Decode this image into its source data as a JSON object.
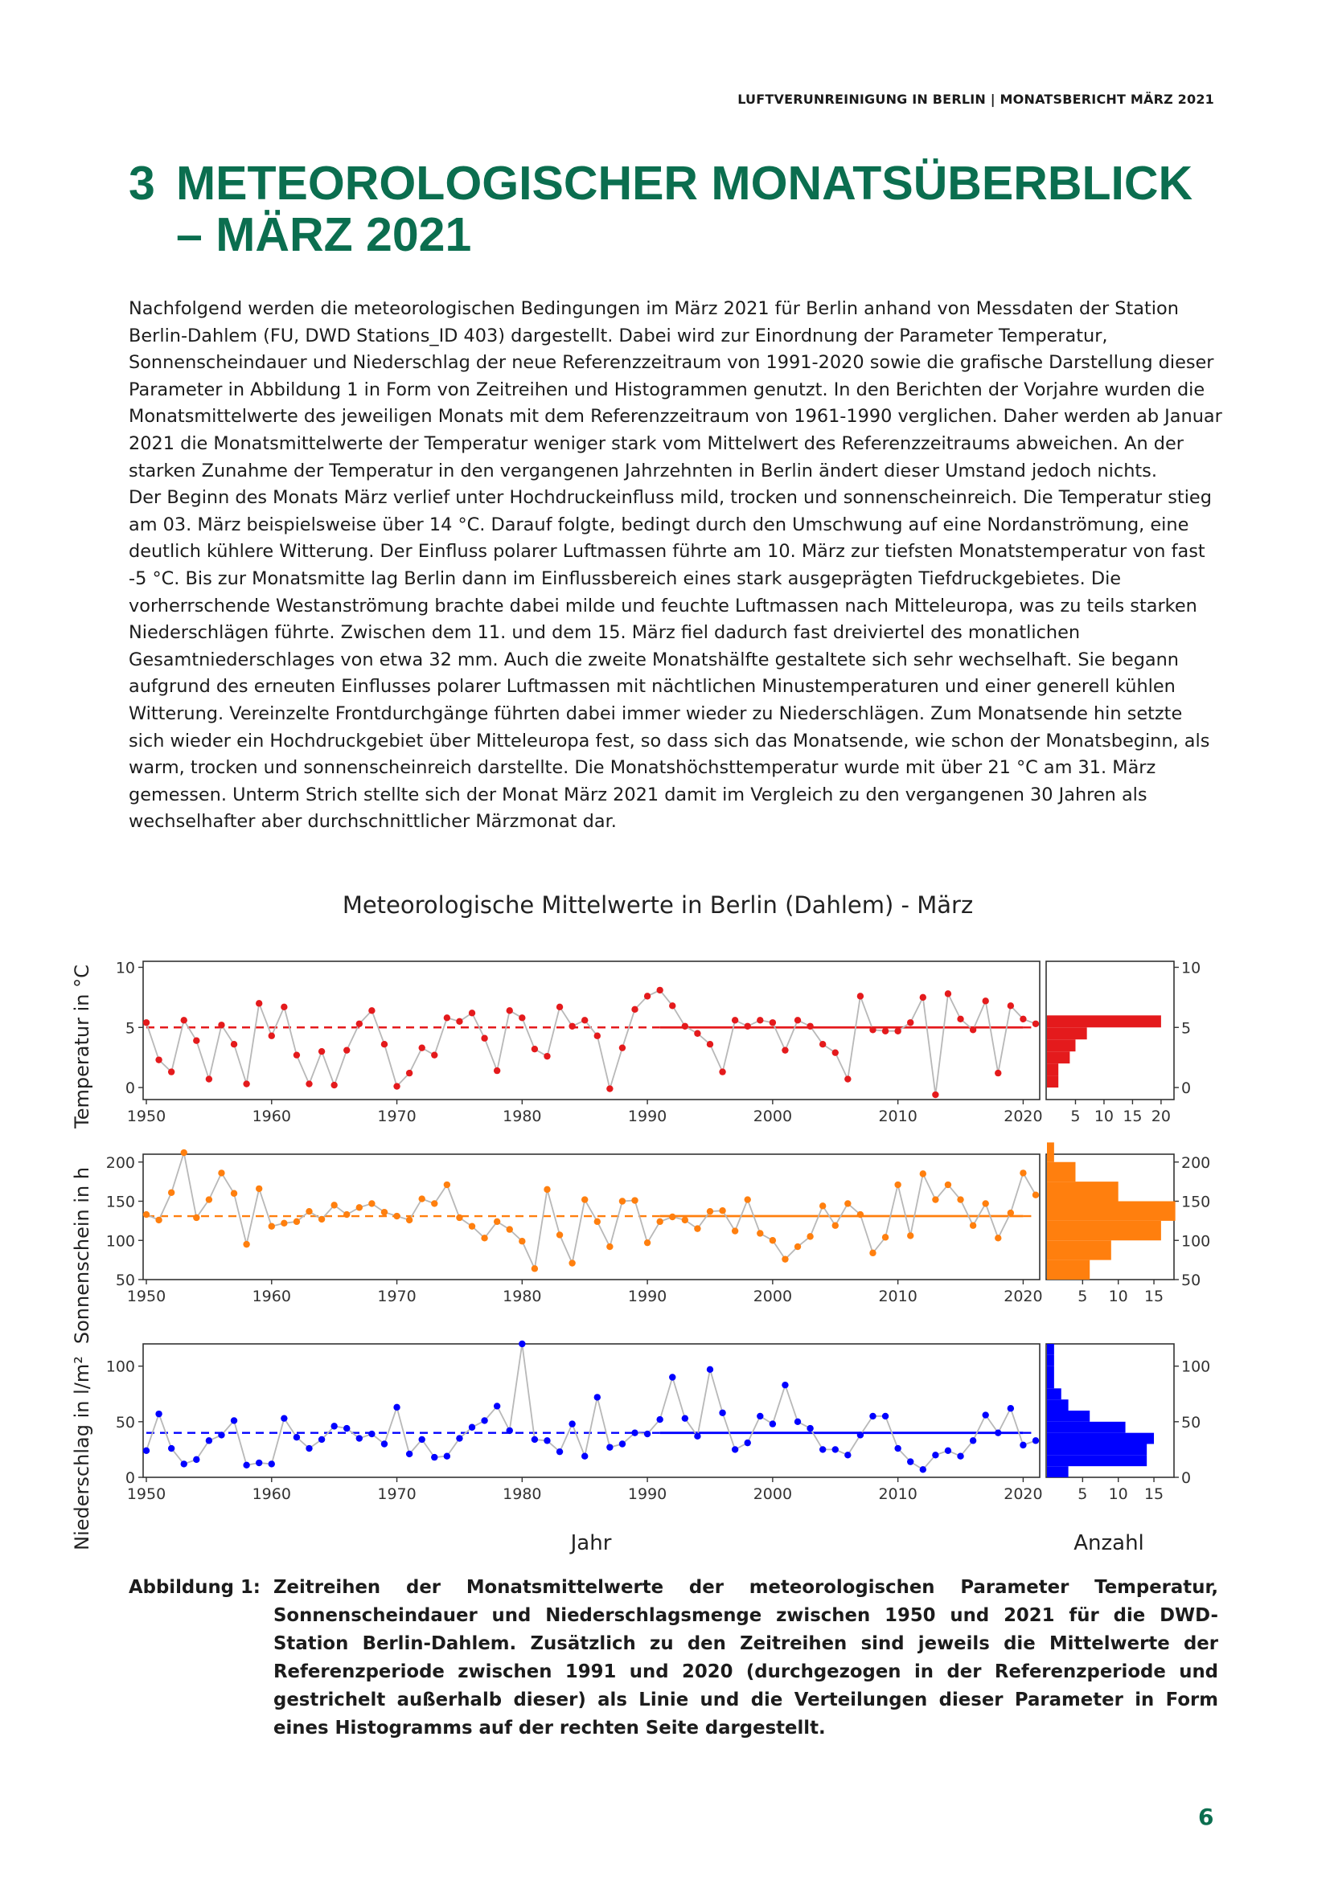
{
  "header": {
    "running_title": "LUFTVERUNREINIGUNG IN BERLIN | MONATSBERICHT MÄRZ 2021"
  },
  "section": {
    "number": "3",
    "title_line1": "METEOROLOGISCHER MONATSÜBERBLICK",
    "title_line2": "– MÄRZ 2021"
  },
  "body": {
    "paragraph1": "Nachfolgend werden die meteorologischen Bedingungen im März 2021 für Berlin anhand von Messdaten der Station Berlin-Dahlem (FU, DWD Stations_ID 403) dargestellt. Dabei wird zur Einordnung der Parameter Temperatur, Sonnenscheindauer und Niederschlag der neue Referenzzeitraum von 1991-2020 sowie die grafische Darstellung dieser Parameter in Abbildung 1 in Form von Zeitreihen und Histogrammen genutzt. In den Berichten der Vorjahre wurden die Monatsmittelwerte des jeweiligen Monats mit dem Referenzzeitraum von 1961-1990 verglichen. Daher werden ab Januar 2021 die Monatsmittelwerte der Temperatur weniger stark vom Mittelwert des Referenzzeitraums abweichen. An der starken Zunahme der Temperatur in den vergangenen Jahrzehnten in Berlin ändert dieser Umstand jedoch nichts.",
    "paragraph2": "Der Beginn des Monats März verlief unter Hochdruckeinfluss mild, trocken und sonnenscheinreich. Die Temperatur stieg am 03. März beispielsweise über 14 °C. Darauf folgte, bedingt durch den Umschwung auf eine Nordanströmung, eine deutlich kühlere Witterung. Der Einfluss polarer Luftmassen führte am 10. März zur tiefsten Monatstemperatur von fast -5 °C. Bis zur Monatsmitte lag Berlin dann im Einflussbereich eines stark ausgeprägten Tiefdruckgebietes. Die vorherrschende Westanströmung brachte dabei milde und feuchte Luftmassen nach Mitteleuropa, was zu teils starken Niederschlägen führte. Zwischen dem 11. und dem 15. März fiel dadurch fast dreiviertel des monatlichen Gesamtniederschlages von etwa 32 mm. Auch die zweite Monatshälfte gestaltete sich sehr wechselhaft. Sie begann aufgrund des erneuten Einflusses polarer Luftmassen mit nächtlichen Minustemperaturen und einer generell kühlen Witterung. Vereinzelte Frontdurchgänge führten dabei immer wieder zu Niederschlägen. Zum Monatsende hin setzte sich wieder ein Hochdruckgebiet über Mitteleuropa fest, so dass sich das Monatsende, wie schon der Monatsbeginn, als warm, trocken und sonnenscheinreich darstellte. Die Monatshöchsttemperatur wurde mit über 21 °C am 31. März gemessen. Unterm Strich stellte sich der Monat März 2021 damit im Vergleich zu den vergangenen 30 Jahren als wechselhafter aber durchschnittlicher Märzmonat dar."
  },
  "figure": {
    "title": "Meteorologische Mittelwerte in Berlin (Dahlem) - März",
    "xlabel_left": "Jahr",
    "xlabel_right": "Anzahl",
    "ylabel_temperature": "Temperatur in °C",
    "ylabel_sunshine": "Sonnenschein in h",
    "ylabel_precip": "Niederschlag in l/m²"
  },
  "chart_data": [
    {
      "type": "line",
      "title": "Temperatur",
      "ylabel": "Temperatur in °C",
      "xlabel": "Jahr",
      "color": "#e41a1c",
      "ylim": [
        -1,
        10.5
      ],
      "yticks": [
        0,
        5,
        10
      ],
      "xlim": [
        1950,
        2021
      ],
      "xticks": [
        1950,
        1960,
        1970,
        1980,
        1990,
        2000,
        2010,
        2020
      ],
      "x": [
        1950,
        1951,
        1952,
        1953,
        1954,
        1955,
        1956,
        1957,
        1958,
        1959,
        1960,
        1961,
        1962,
        1963,
        1964,
        1965,
        1966,
        1967,
        1968,
        1969,
        1970,
        1971,
        1972,
        1973,
        1974,
        1975,
        1976,
        1977,
        1978,
        1979,
        1980,
        1981,
        1982,
        1983,
        1984,
        1985,
        1986,
        1987,
        1988,
        1989,
        1990,
        1991,
        1992,
        1993,
        1994,
        1995,
        1996,
        1997,
        1998,
        1999,
        2000,
        2001,
        2002,
        2003,
        2004,
        2005,
        2006,
        2007,
        2008,
        2009,
        2010,
        2011,
        2012,
        2013,
        2014,
        2015,
        2016,
        2017,
        2018,
        2019,
        2020,
        2021
      ],
      "values": [
        5.4,
        2.3,
        1.3,
        5.6,
        3.9,
        0.7,
        5.2,
        3.6,
        0.3,
        7.0,
        4.3,
        6.7,
        2.7,
        0.3,
        3.0,
        0.2,
        3.1,
        5.3,
        6.4,
        3.6,
        0.1,
        1.2,
        3.3,
        2.7,
        5.8,
        5.5,
        6.2,
        4.1,
        1.4,
        6.4,
        5.8,
        3.2,
        2.6,
        6.7,
        5.1,
        5.6,
        4.3,
        -0.1,
        3.3,
        6.5,
        7.6,
        8.1,
        6.8,
        5.1,
        4.5,
        3.6,
        1.3,
        5.6,
        5.1,
        5.6,
        5.4,
        3.1,
        5.6,
        5.1,
        3.6,
        2.9,
        0.7,
        7.6,
        4.8,
        4.7,
        4.7,
        5.4,
        7.5,
        -0.6,
        7.8,
        5.7,
        4.8,
        7.2,
        1.2,
        6.8,
        5.7,
        5.3
      ],
      "reference_mean": 5.0,
      "reference_period": [
        1991,
        2020
      ],
      "histogram": {
        "bins": [
          0,
          1,
          2,
          3,
          4,
          5,
          6
        ],
        "counts": [
          2,
          2,
          4,
          5,
          7,
          20,
          7
        ],
        "xticks": [
          5,
          10,
          15,
          20
        ],
        "xlabel": "Anzahl"
      }
    },
    {
      "type": "line",
      "title": "Sonnenschein",
      "ylabel": "Sonnenschein in h",
      "xlabel": "Jahr",
      "color": "#ff7f0e",
      "ylim": [
        50,
        210
      ],
      "yticks": [
        50,
        100,
        150,
        200
      ],
      "xlim": [
        1950,
        2021
      ],
      "xticks": [
        1950,
        1960,
        1970,
        1980,
        1990,
        2000,
        2010,
        2020
      ],
      "x": [
        1950,
        1951,
        1952,
        1953,
        1954,
        1955,
        1956,
        1957,
        1958,
        1959,
        1960,
        1961,
        1962,
        1963,
        1964,
        1965,
        1966,
        1967,
        1968,
        1969,
        1970,
        1971,
        1972,
        1973,
        1974,
        1975,
        1976,
        1977,
        1978,
        1979,
        1980,
        1981,
        1982,
        1983,
        1984,
        1985,
        1986,
        1987,
        1988,
        1989,
        1990,
        1991,
        1992,
        1993,
        1994,
        1995,
        1996,
        1997,
        1998,
        1999,
        2000,
        2001,
        2002,
        2003,
        2004,
        2005,
        2006,
        2007,
        2008,
        2009,
        2010,
        2011,
        2012,
        2013,
        2014,
        2015,
        2016,
        2017,
        2018,
        2019,
        2020,
        2021
      ],
      "values": [
        133,
        126,
        161,
        212,
        129,
        152,
        186,
        160,
        95,
        166,
        118,
        122,
        124,
        137,
        127,
        145,
        133,
        142,
        147,
        136,
        131,
        126,
        153,
        147,
        171,
        129,
        118,
        103,
        124,
        114,
        99,
        64,
        165,
        107,
        71,
        152,
        124,
        92,
        150,
        151,
        97,
        124,
        130,
        126,
        115,
        137,
        138,
        112,
        152,
        109,
        100,
        76,
        92,
        105,
        144,
        119,
        147,
        133,
        84,
        104,
        171,
        106,
        185,
        152,
        171,
        152,
        119,
        147,
        103,
        135,
        186,
        158
      ],
      "reference_mean": 131,
      "reference_period": [
        1991,
        2020
      ],
      "histogram": {
        "bins": [
          50,
          75,
          100,
          125,
          150,
          175,
          200,
          225
        ],
        "counts": [
          6,
          9,
          16,
          18,
          10,
          4,
          1
        ],
        "xticks": [
          5,
          10,
          15
        ],
        "xlabel": "Anzahl"
      }
    },
    {
      "type": "line",
      "title": "Niederschlag",
      "ylabel": "Niederschlag in l/m²",
      "xlabel": "Jahr",
      "color": "#0000ff",
      "ylim": [
        0,
        120
      ],
      "yticks": [
        0,
        50,
        100
      ],
      "xlim": [
        1950,
        2021
      ],
      "xticks": [
        1950,
        1960,
        1970,
        1980,
        1990,
        2000,
        2010,
        2020
      ],
      "x": [
        1950,
        1951,
        1952,
        1953,
        1954,
        1955,
        1956,
        1957,
        1958,
        1959,
        1960,
        1961,
        1962,
        1963,
        1964,
        1965,
        1966,
        1967,
        1968,
        1969,
        1970,
        1971,
        1972,
        1973,
        1974,
        1975,
        1976,
        1977,
        1978,
        1979,
        1980,
        1981,
        1982,
        1983,
        1984,
        1985,
        1986,
        1987,
        1988,
        1989,
        1990,
        1991,
        1992,
        1993,
        1994,
        1995,
        1996,
        1997,
        1998,
        1999,
        2000,
        2001,
        2002,
        2003,
        2004,
        2005,
        2006,
        2007,
        2008,
        2009,
        2010,
        2011,
        2012,
        2013,
        2014,
        2015,
        2016,
        2017,
        2018,
        2019,
        2020,
        2021
      ],
      "values": [
        24,
        57,
        26,
        12,
        16,
        33,
        38,
        51,
        11,
        13,
        12,
        53,
        36,
        26,
        34,
        46,
        44,
        35,
        39,
        30,
        63,
        21,
        34,
        18,
        19,
        35,
        45,
        51,
        64,
        42,
        120,
        34,
        33,
        23,
        48,
        19,
        72,
        27,
        30,
        40,
        39,
        52,
        90,
        53,
        37,
        97,
        58,
        25,
        31,
        55,
        48,
        83,
        50,
        44,
        25,
        25,
        20,
        38,
        55,
        55,
        26,
        14,
        7,
        20,
        24,
        19,
        33,
        56,
        40,
        62,
        29,
        33
      ],
      "reference_mean": 40,
      "reference_period": [
        1991,
        2020
      ],
      "histogram": {
        "bins": [
          0,
          10,
          20,
          30,
          40,
          50,
          60,
          70,
          80,
          90,
          100,
          110,
          120
        ],
        "counts": [
          3,
          14,
          14,
          15,
          11,
          6,
          3,
          2,
          1,
          1,
          1,
          1
        ],
        "xticks": [
          5,
          10,
          15
        ],
        "xlabel": "Anzahl"
      }
    }
  ],
  "caption": {
    "label": "Abbildung 1:",
    "text": "Zeitreihen der Monatsmittelwerte der meteorologischen Parameter Temperatur, Sonnenschein­dauer und Niederschlagsmenge zwischen 1950 und 2021 für die DWD-Station Berlin-Dahlem. Zusätzlich zu den Zeitreihen sind jeweils die Mittelwerte der Referenzperiode zwischen 1991 und 2020 (durchgezogen in der Referenzperiode und gestrichelt außerhalb dieser) als Linie und die Verteilungen dieser Parameter in Form eines Histogramms auf der rechten Seite dargestellt."
  },
  "footer": {
    "page_number": "6"
  }
}
